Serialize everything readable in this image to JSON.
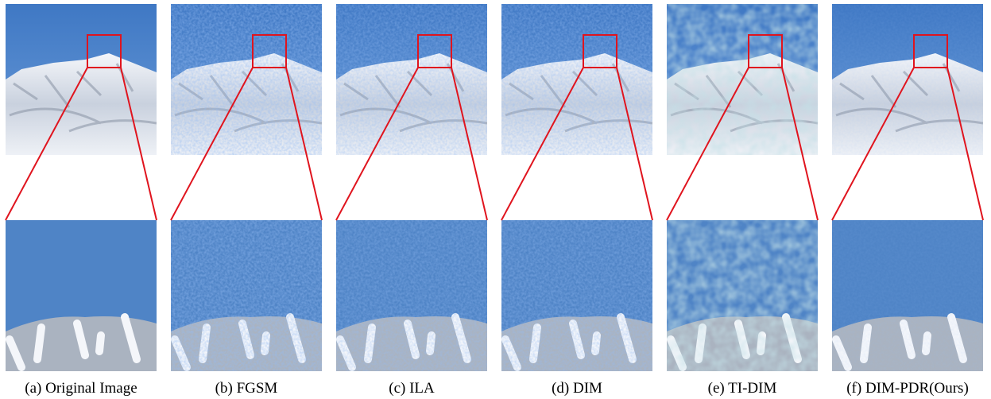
{
  "figure": {
    "panels": [
      {
        "caption": "(a) Original Image"
      },
      {
        "caption": "(b) FGSM"
      },
      {
        "caption": "(c) ILA"
      },
      {
        "caption": "(d) DIM"
      },
      {
        "caption": "(e) TI-DIM"
      },
      {
        "caption": "(f) DIM-PDR(Ours)"
      }
    ]
  }
}
